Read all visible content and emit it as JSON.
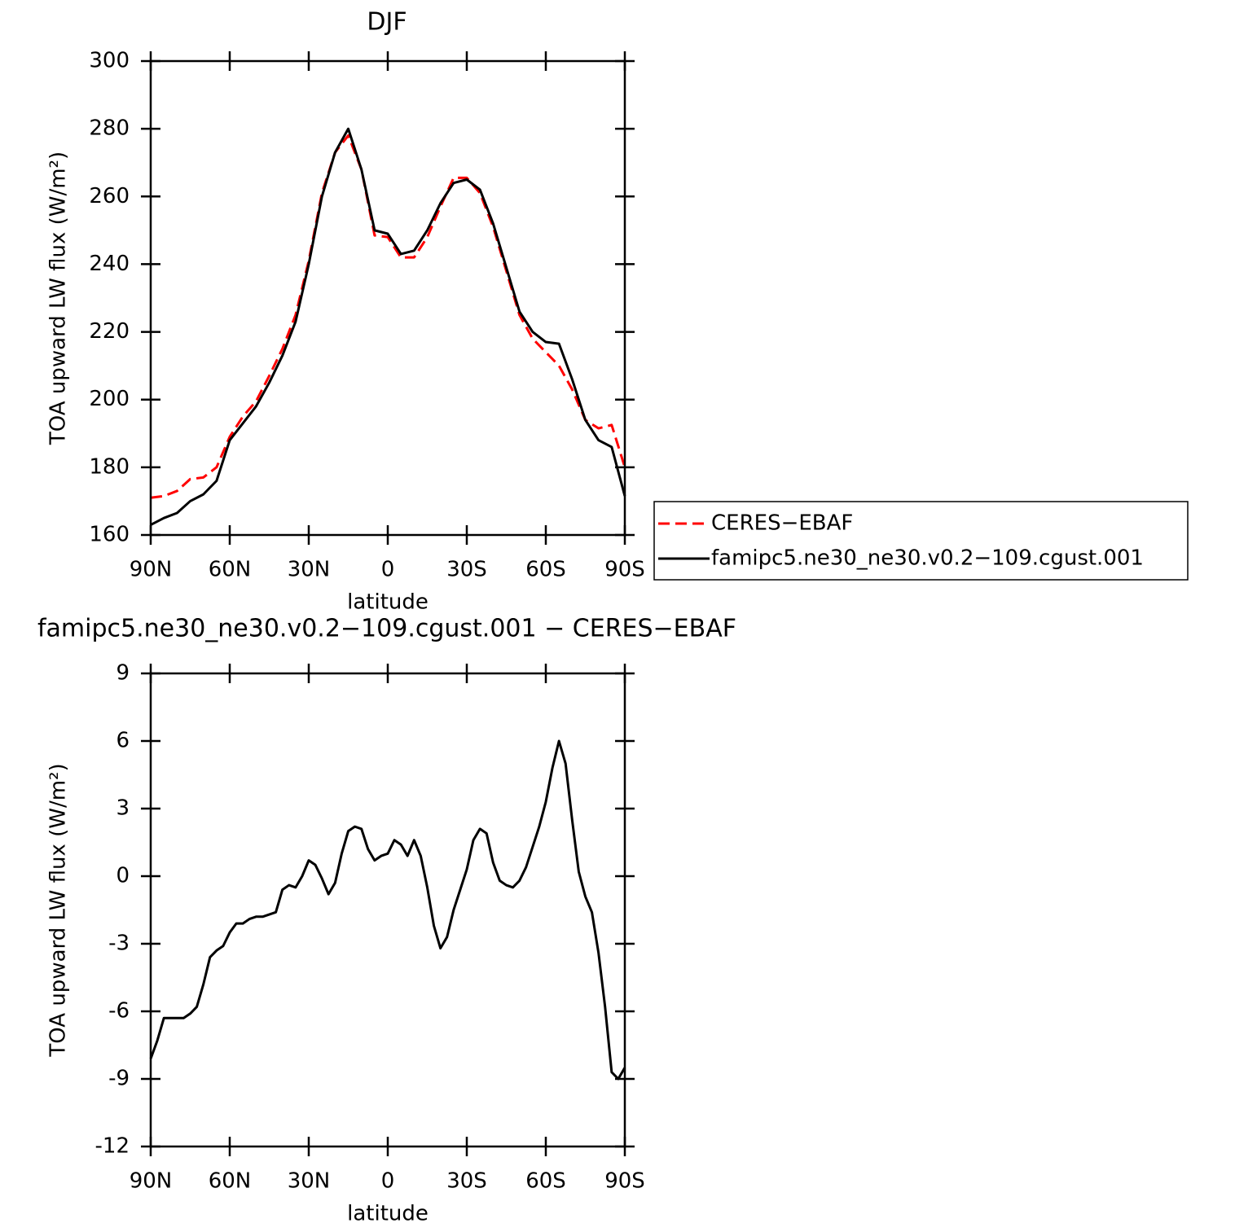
{
  "chart_data": [
    {
      "type": "line",
      "title": "DJF",
      "xlabel": "latitude",
      "ylabel": "TOA upward LW flux (W/m²)",
      "xlim": [
        90,
        -90
      ],
      "xticks": [
        {
          "value": 90,
          "label": "90N"
        },
        {
          "value": 60,
          "label": "60N"
        },
        {
          "value": 30,
          "label": "30N"
        },
        0,
        {
          "value": -30,
          "label": "30S"
        },
        {
          "value": -60,
          "label": "60S"
        },
        {
          "value": -90,
          "label": "90S"
        }
      ],
      "ylim": [
        160,
        300
      ],
      "yticks": [
        160,
        180,
        200,
        220,
        240,
        260,
        280,
        300
      ],
      "legend": "right",
      "x": [
        90,
        85,
        80,
        75,
        70,
        65,
        60,
        55,
        50,
        45,
        40,
        35,
        30,
        25,
        20,
        15,
        10,
        5,
        0,
        -5,
        -10,
        -15,
        -20,
        -25,
        -30,
        -35,
        -40,
        -45,
        -50,
        -55,
        -60,
        -65,
        -70,
        -75,
        -80,
        -85,
        -90
      ],
      "series": [
        {
          "name": "CERES−EBAF",
          "color": "#ff0000",
          "dashed": true,
          "values": [
            171,
            171.5,
            173,
            176.5,
            177,
            180,
            189,
            195,
            199.5,
            207,
            215,
            225,
            241,
            261,
            273,
            278,
            268,
            248.5,
            248,
            242,
            242,
            248,
            257,
            265.5,
            265.5,
            261,
            251,
            238,
            225,
            218,
            214,
            210,
            203,
            194,
            191.5,
            192.5,
            180
          ]
        },
        {
          "name": "famipc5.ne30_ne30.v0.2−109.cgust.001",
          "color": "#000000",
          "dashed": false,
          "values": [
            163,
            165,
            166.5,
            170,
            172,
            176,
            188,
            193,
            198,
            205,
            213,
            223,
            240,
            260,
            273,
            280,
            268,
            250,
            249,
            243,
            244,
            250,
            258,
            264,
            265,
            262,
            252,
            239,
            226,
            220,
            217,
            216.5,
            206,
            194,
            188,
            186,
            171.5
          ]
        }
      ]
    },
    {
      "type": "line",
      "title": "famipc5.ne30_ne30.v0.2−109.cgust.001 − CERES−EBAF",
      "xlabel": "latitude",
      "ylabel": "TOA upward LW flux (W/m²)",
      "xlim": [
        90,
        -90
      ],
      "xticks": [
        {
          "value": 90,
          "label": "90N"
        },
        {
          "value": 60,
          "label": "60N"
        },
        {
          "value": 30,
          "label": "30N"
        },
        0,
        {
          "value": -30,
          "label": "30S"
        },
        {
          "value": -60,
          "label": "60S"
        },
        {
          "value": -90,
          "label": "90S"
        }
      ],
      "ylim": [
        -12,
        9
      ],
      "yticks": [
        -12,
        -9,
        -6,
        -3,
        0,
        3,
        6,
        9
      ],
      "x": [
        90,
        87.5,
        85,
        82.5,
        80,
        77.5,
        75,
        72.5,
        70,
        67.5,
        65,
        62.5,
        60,
        57.5,
        55,
        52.5,
        50,
        47.5,
        45,
        42.5,
        40,
        37.5,
        35,
        32.5,
        30,
        27.5,
        25,
        22.5,
        20,
        17.5,
        15,
        12.5,
        10,
        7.5,
        5,
        2.5,
        0,
        -2.5,
        -5,
        -7.5,
        -10,
        -12.5,
        -15,
        -17.5,
        -20,
        -22.5,
        -25,
        -27.5,
        -30,
        -32.5,
        -35,
        -37.5,
        -40,
        -42.5,
        -45,
        -47.5,
        -50,
        -52.5,
        -55,
        -57.5,
        -60,
        -62.5,
        -65,
        -67.5,
        -70,
        -72.5,
        -75,
        -77.5,
        -80,
        -82.5,
        -85,
        -87.5,
        -90
      ],
      "series": [
        {
          "color": "#000000",
          "dashed": false,
          "values": [
            -8.1,
            -7.3,
            -6.3,
            -6.3,
            -6.3,
            -6.3,
            -6.1,
            -5.8,
            -4.8,
            -3.6,
            -3.3,
            -3.1,
            -2.5,
            -2.1,
            -2.1,
            -1.9,
            -1.8,
            -1.8,
            -1.7,
            -1.6,
            -0.6,
            -0.4,
            -0.5,
            0,
            0.7,
            0.5,
            -0.1,
            -0.8,
            -0.3,
            1,
            2.0,
            2.2,
            2.1,
            1.2,
            0.7,
            0.9,
            1.0,
            1.6,
            1.4,
            0.9,
            1.6,
            0.9,
            -0.5,
            -2.2,
            -3.2,
            -2.7,
            -1.5,
            -0.6,
            0.3,
            1.6,
            2.1,
            1.9,
            0.6,
            -0.2,
            -0.4,
            -0.5,
            -0.2,
            0.4,
            1.3,
            2.2,
            3.3,
            4.8,
            6.0,
            5.0,
            2.5,
            0.2,
            -0.9,
            -1.6,
            -3.4,
            -5.8,
            -8.7,
            -9.0,
            -8.5
          ]
        }
      ]
    }
  ]
}
